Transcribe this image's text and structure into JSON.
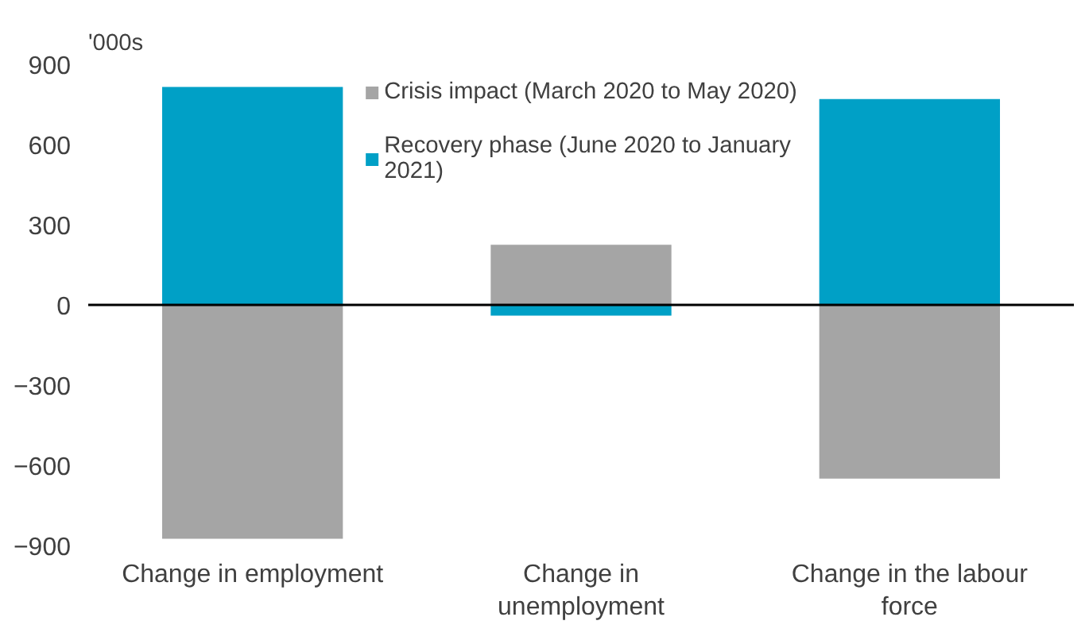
{
  "chart_data": {
    "type": "bar",
    "stacked": true,
    "ylabel": "'000s",
    "categories": [
      "Change in employment",
      "Change in unemployment",
      "Change in the labour force"
    ],
    "series": [
      {
        "name": "Crisis impact (March 2020 to May 2020)",
        "color": "#a5a5a5",
        "values": [
          -875,
          225,
          -650
        ]
      },
      {
        "name": "Recovery phase (June 2020 to January 2021)",
        "color": "#00a0c6",
        "values": [
          815,
          -40,
          770
        ]
      }
    ],
    "ylim": [
      -900,
      900
    ],
    "yticks": [
      -900,
      -600,
      -300,
      0,
      300,
      600,
      900
    ],
    "grid": false,
    "legend": "top",
    "ref_lines": [
      {
        "axis": "y",
        "value": 0
      }
    ]
  }
}
